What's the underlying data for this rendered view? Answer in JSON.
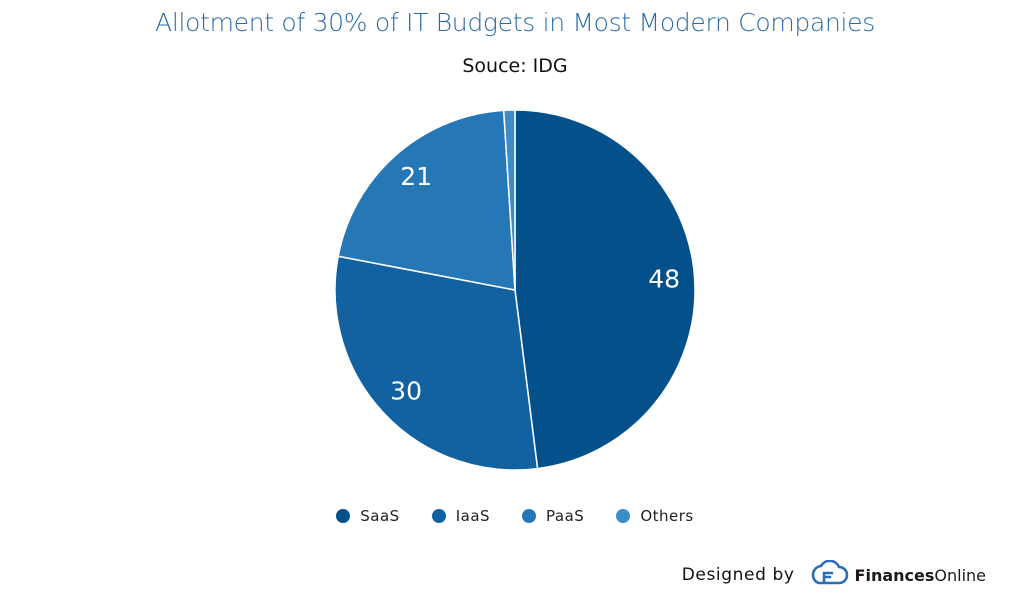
{
  "chart_data": {
    "type": "pie",
    "title": "Allotment of 30% of IT Budgets in Most Modern Companies",
    "subtitle": "Souce: IDG",
    "categories": [
      "SaaS",
      "IaaS",
      "PaaS",
      "Others"
    ],
    "values": [
      48,
      30,
      21,
      1
    ],
    "data_labels": [
      "48",
      "30",
      "21",
      ""
    ],
    "colors": [
      "#03508b",
      "#1262a2",
      "#2677b6",
      "#3b8ccb"
    ],
    "legend_position": "bottom",
    "start_angle": "top, clockwise"
  },
  "footer": {
    "designed_by": "Designed by",
    "brand_bold": "Finances",
    "brand_regular": "Online"
  }
}
